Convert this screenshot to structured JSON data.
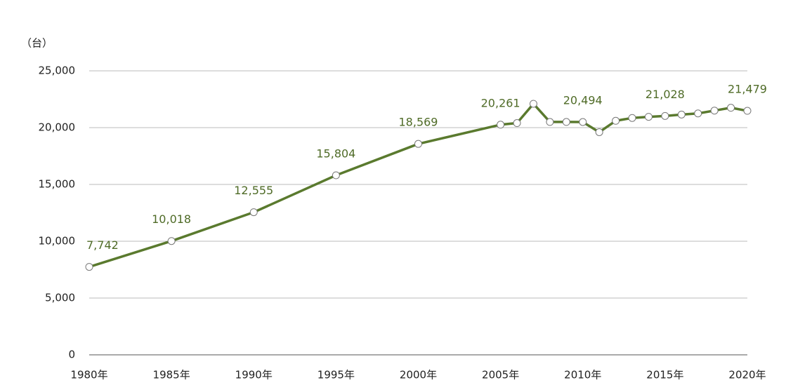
{
  "chart_data": {
    "type": "line",
    "y_label": "（台）",
    "x": [
      1980,
      1985,
      1990,
      1995,
      2000,
      2005,
      2006,
      2007,
      2008,
      2009,
      2010,
      2011,
      2012,
      2013,
      2014,
      2015,
      2016,
      2017,
      2018,
      2019,
      2020
    ],
    "series": [
      {
        "name": null,
        "color": "#5a7a2e",
        "values": [
          7742,
          10018,
          12555,
          15804,
          18569,
          20261,
          20400,
          22100,
          20500,
          20500,
          20494,
          19600,
          20600,
          20850,
          20950,
          21028,
          21150,
          21250,
          21500,
          21750,
          21479
        ],
        "value_labels": [
          "7,742",
          "10,018",
          "12,555",
          "15,804",
          "18,569",
          "20,261",
          null,
          null,
          null,
          null,
          "20,494",
          null,
          null,
          null,
          null,
          "21,028",
          null,
          null,
          null,
          null,
          "21,479"
        ]
      }
    ],
    "xlim": [
      1980,
      2020
    ],
    "xticks": [
      {
        "value": 1980,
        "label": "1980年"
      },
      {
        "value": 1985,
        "label": "1985年"
      },
      {
        "value": 1990,
        "label": "1990年"
      },
      {
        "value": 1995,
        "label": "1995年"
      },
      {
        "value": 2000,
        "label": "2000年"
      },
      {
        "value": 2005,
        "label": "2005年"
      },
      {
        "value": 2010,
        "label": "2010年"
      },
      {
        "value": 2015,
        "label": "2015年"
      },
      {
        "value": 2020,
        "label": "2020年"
      }
    ],
    "ylim": [
      0,
      25000
    ],
    "yticks": [
      0,
      {
        "value": 5000,
        "label": "5,000"
      },
      {
        "value": 10000,
        "label": "10,000"
      },
      {
        "value": 15000,
        "label": "15,000"
      },
      {
        "value": 20000,
        "label": "20,000"
      },
      {
        "value": 25000,
        "label": "25,000"
      }
    ],
    "grid": true
  }
}
